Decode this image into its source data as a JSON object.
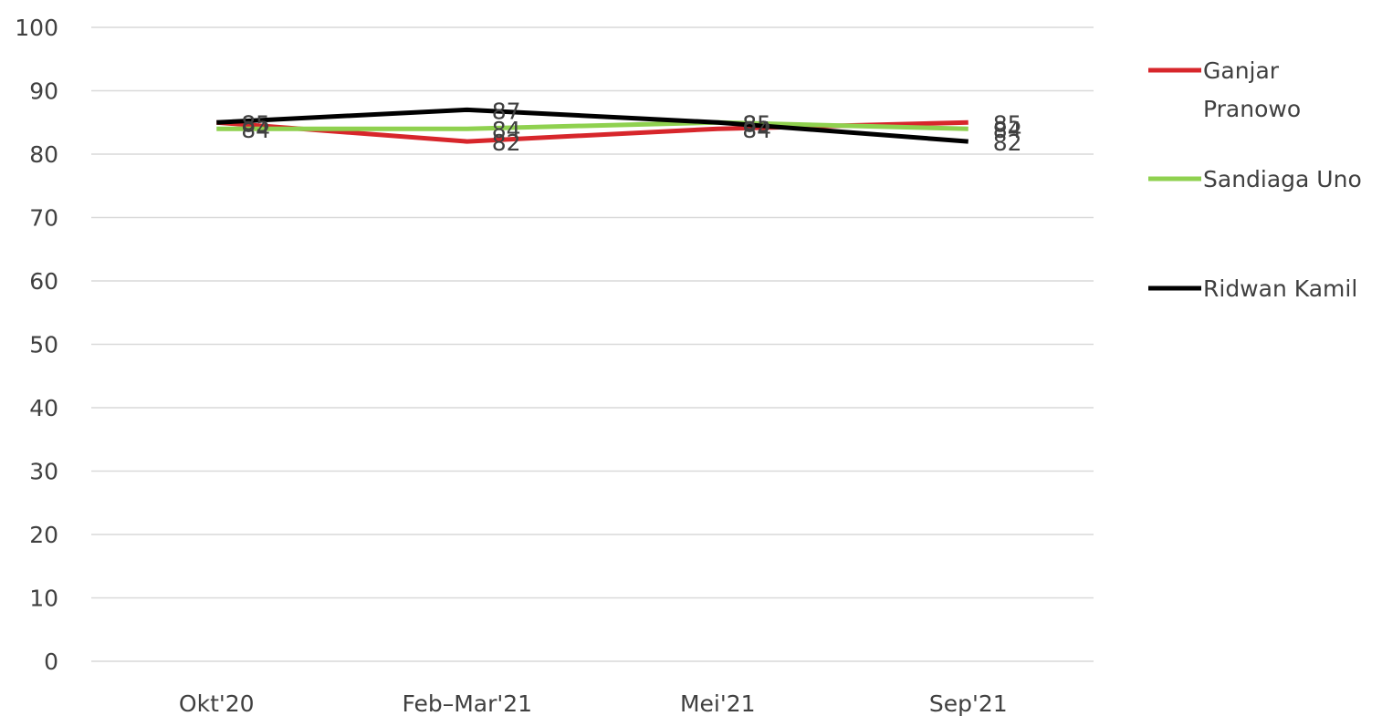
{
  "chart_data": {
    "type": "line",
    "title": "",
    "xlabel": "",
    "ylabel": "",
    "categories": [
      "Okt'20",
      "Feb–Mar'21",
      "Mei'21",
      "Sep'21"
    ],
    "ylim": [
      0,
      100
    ],
    "yticks": [
      0,
      10,
      20,
      30,
      40,
      50,
      60,
      70,
      80,
      90,
      100
    ],
    "grid": true,
    "legend_position": "right",
    "series": [
      {
        "name_lines": [
          "Ganjar",
          "Pranowo"
        ],
        "color": "#d7262b",
        "values": [
          85,
          82,
          84,
          85
        ]
      },
      {
        "name_lines": [
          "Sandiaga Uno"
        ],
        "color": "#8fd14f",
        "values": [
          84,
          84,
          85,
          84
        ]
      },
      {
        "name_lines": [
          "Ridwan Kamil"
        ],
        "color": "#000000",
        "values": [
          85,
          87,
          85,
          82
        ]
      }
    ]
  }
}
